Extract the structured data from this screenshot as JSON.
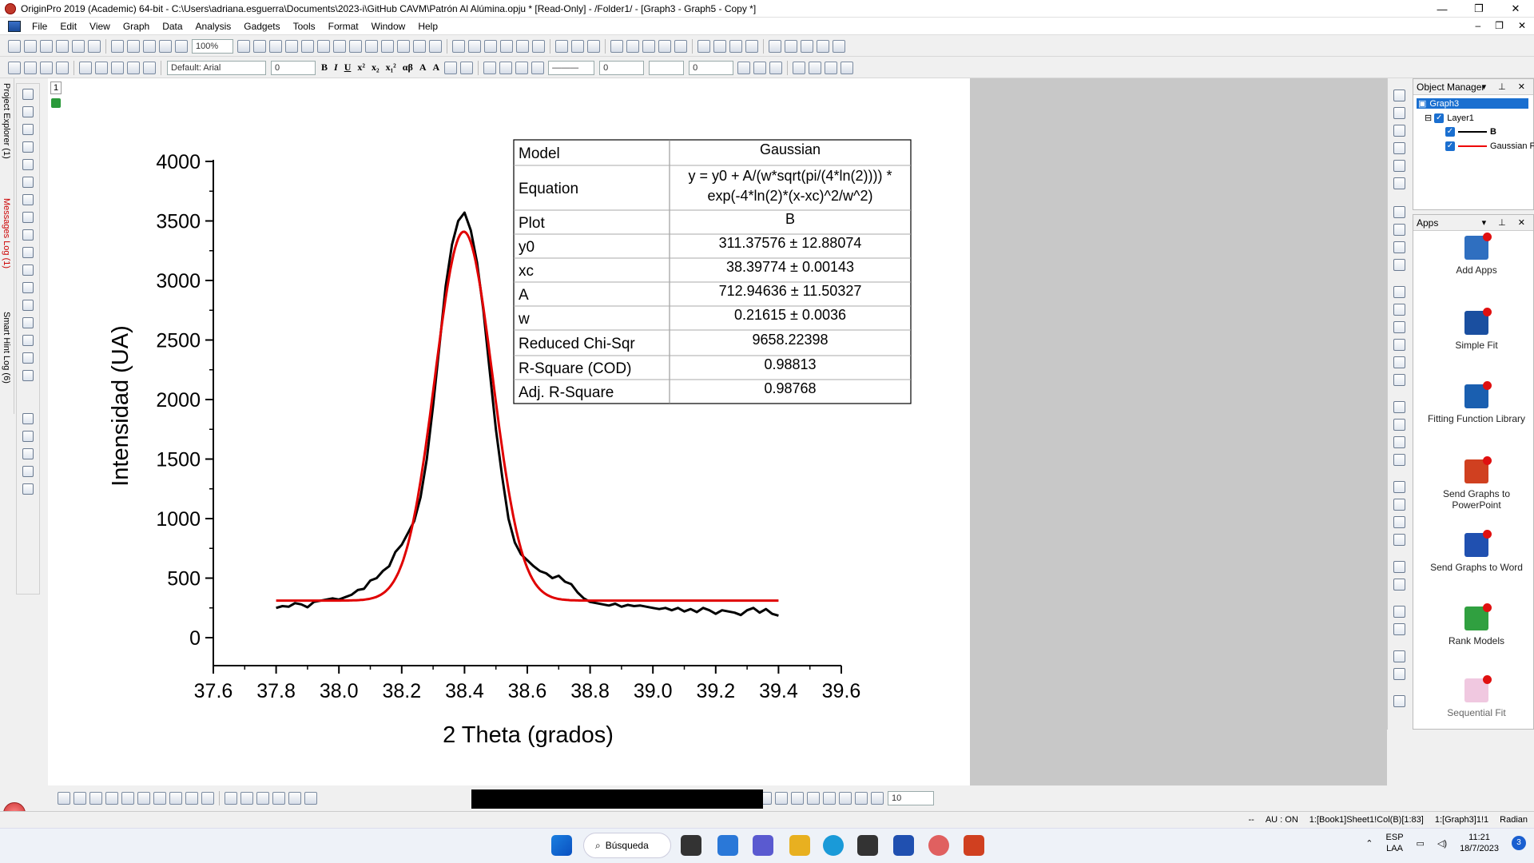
{
  "window": {
    "title": "OriginPro 2019 (Academic) 64-bit - C:\\Users\\adriana.esguerra\\Documents\\2023-i\\GitHub CAVM\\Patrón Al Alúmina.opju * [Read-Only] - /Folder1/ - [Graph3 - Graph5 - Copy *]",
    "controls": [
      "—",
      "❐",
      "✕"
    ]
  },
  "menu": {
    "items": [
      "File",
      "Edit",
      "View",
      "Graph",
      "Data",
      "Analysis",
      "Gadgets",
      "Tools",
      "Format",
      "Window",
      "Help"
    ],
    "mdi_controls": [
      "–",
      "❐",
      "✕"
    ]
  },
  "toolbar": {
    "zoom": "100%",
    "font": "Default: Arial",
    "font_size": "0",
    "line_width": "0",
    "fill_size": "0",
    "bottom_size": "10",
    "glyphs": [
      "B",
      "I",
      "U",
      "x²",
      "x₂",
      "x₁²",
      "αβ",
      "A",
      "A"
    ]
  },
  "left_dock": {
    "tabs": [
      "Project Explorer (1)",
      "Messages Log (1)",
      "Smart Hint Log (6)"
    ]
  },
  "graph": {
    "layer_number": "1"
  },
  "fit_table": {
    "rows": [
      {
        "label": "Model",
        "value": "Gaussian"
      },
      {
        "label": "Equation",
        "value": "y = y0 + A/(w*sqrt(pi/(4*ln(2)))) *",
        "value2": "exp(-4*ln(2)*(x-xc)^2/w^2)"
      },
      {
        "label": "Plot",
        "value": "B"
      },
      {
        "label": "y0",
        "value": "311.37576 ± 12.88074"
      },
      {
        "label": "xc",
        "value": "38.39774 ± 0.00143"
      },
      {
        "label": "A",
        "value": "712.94636 ± 11.50327"
      },
      {
        "label": "w",
        "value": "0.21615 ± 0.0036"
      },
      {
        "label": "Reduced Chi-Sqr",
        "value": "9658.22398"
      },
      {
        "label": "R-Square (COD)",
        "value": "0.98813"
      },
      {
        "label": "Adj. R-Square",
        "value": "0.98768"
      }
    ]
  },
  "chart_data": {
    "type": "line",
    "xlabel": "2 Theta (grados)",
    "ylabel": "Intensidad (UA)",
    "xlim": [
      37.6,
      39.6
    ],
    "ylim": [
      0,
      4000
    ],
    "x_ticks": [
      "37.6",
      "37.8",
      "38.0",
      "38.2",
      "38.4",
      "38.6",
      "38.8",
      "39.0",
      "39.2",
      "39.4",
      "39.6"
    ],
    "y_ticks": [
      "0",
      "500",
      "1000",
      "1500",
      "2000",
      "2500",
      "3000",
      "3500",
      "4000"
    ],
    "grid": false,
    "series": [
      {
        "name": "B",
        "color": "#000000",
        "x": [
          37.8,
          37.82,
          37.84,
          37.86,
          37.88,
          37.9,
          37.92,
          37.94,
          37.96,
          37.98,
          38.0,
          38.02,
          38.04,
          38.06,
          38.08,
          38.1,
          38.12,
          38.14,
          38.16,
          38.18,
          38.2,
          38.22,
          38.24,
          38.26,
          38.28,
          38.3,
          38.32,
          38.34,
          38.36,
          38.38,
          38.4,
          38.42,
          38.44,
          38.46,
          38.48,
          38.5,
          38.52,
          38.54,
          38.56,
          38.58,
          38.6,
          38.62,
          38.64,
          38.66,
          38.68,
          38.7,
          38.72,
          38.74,
          38.76,
          38.78,
          38.8,
          38.82,
          38.84,
          38.86,
          38.88,
          38.9,
          38.92,
          38.94,
          38.96,
          38.98,
          39.0,
          39.02,
          39.04,
          39.06,
          39.08,
          39.1,
          39.12,
          39.14,
          39.16,
          39.18,
          39.2,
          39.22,
          39.24,
          39.26,
          39.28,
          39.3,
          39.32,
          39.34,
          39.36,
          39.38,
          39.4
        ],
        "y": [
          250,
          265,
          260,
          290,
          280,
          255,
          300,
          310,
          320,
          330,
          320,
          340,
          360,
          400,
          410,
          480,
          500,
          560,
          600,
          720,
          780,
          880,
          980,
          1180,
          1500,
          1950,
          2450,
          2950,
          3300,
          3500,
          3570,
          3420,
          3150,
          2750,
          2250,
          1750,
          1350,
          1000,
          800,
          700,
          650,
          600,
          560,
          540,
          500,
          520,
          470,
          450,
          380,
          330,
          300,
          290,
          280,
          270,
          285,
          260,
          275,
          265,
          270,
          260,
          250,
          240,
          250,
          230,
          250,
          220,
          240,
          215,
          250,
          230,
          200,
          230,
          220,
          210,
          190,
          230,
          250,
          210,
          240,
          200,
          185
        ]
      },
      {
        "name": "Gaussian Fit",
        "color": "#e00000",
        "fit": {
          "y0": 311.37576,
          "xc": 38.39774,
          "A": 712.94636,
          "w": 0.21615
        },
        "x_range": [
          37.8,
          39.4
        ]
      }
    ]
  },
  "object_manager": {
    "title": "Object Manager",
    "graph": "Graph3",
    "layer": "Layer1",
    "items": [
      "B",
      "Gaussian F"
    ]
  },
  "apps": {
    "title": "Apps",
    "items": [
      {
        "label": "Add Apps",
        "color": "#2f6fc0"
      },
      {
        "label": "Simple Fit",
        "color": "#1a4fa0"
      },
      {
        "label": "Fitting Function Library",
        "color": "#1a5fb0"
      },
      {
        "label": "Send Graphs to PowerPoint",
        "color": "#d04020"
      },
      {
        "label": "Send Graphs to Word",
        "color": "#2050b0"
      },
      {
        "label": "Rank Models",
        "color": "#30a040"
      },
      {
        "label": "Sequential Fit",
        "color": "#d080b0"
      }
    ]
  },
  "status": {
    "items": [
      "--",
      "AU : ON",
      "1:[Book1]Sheet1!Col(B)[1:83]",
      "1:[Graph3]1!1",
      "Radian"
    ]
  },
  "taskbar": {
    "search": "Búsqueda",
    "lang1": "ESP",
    "lang2": "LAA",
    "time": "11:21",
    "date": "18/7/2023",
    "notifications": "3"
  }
}
